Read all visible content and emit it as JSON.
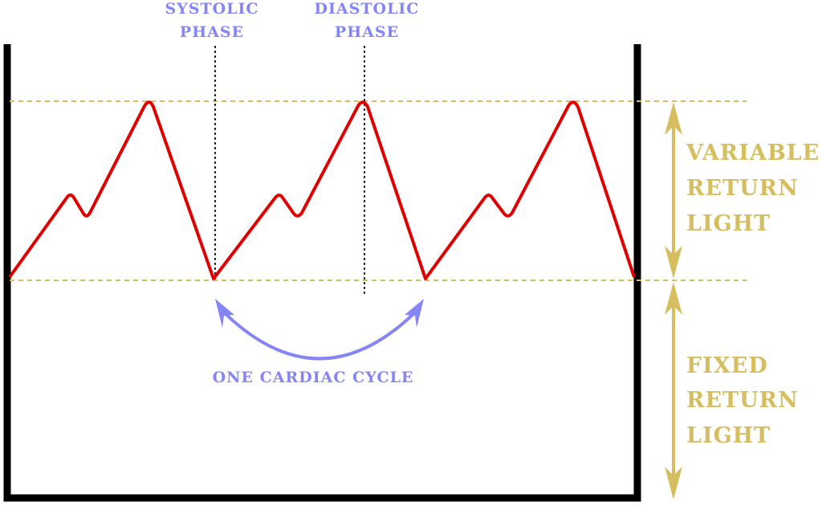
{
  "labels": {
    "systolic": [
      "SYSTOLIC",
      "PHASE"
    ],
    "diastolic": [
      "DIASTOLIC",
      "PHASE"
    ],
    "cycle": "ONE CARDIAC CYCLE",
    "variable": [
      "VARIABLE",
      "RETURN",
      "LIGHT"
    ],
    "fixed": [
      "FIXED",
      "RETURN",
      "LIGHT"
    ]
  },
  "colors": {
    "waveform": "#e00000",
    "phase_labels": "#8585f5",
    "return_light": "#d6bd5e",
    "container": "#000000"
  }
}
